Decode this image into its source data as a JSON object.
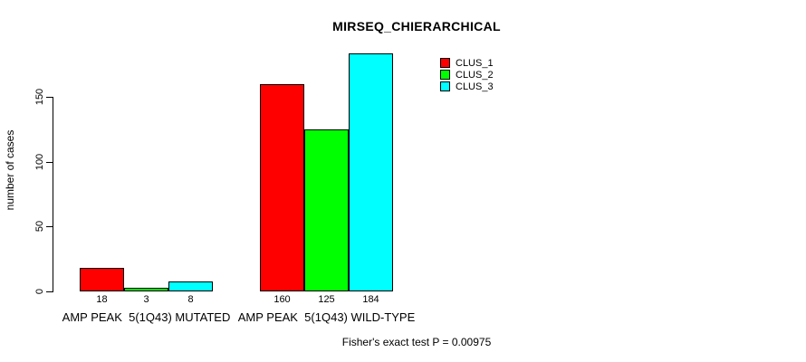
{
  "chart_data": {
    "type": "bar",
    "title": "MIRSEQ_CHIERARCHICAL",
    "ylabel": "number of cases",
    "xlabel": "",
    "categories": [
      "AMP PEAK  5(1Q43) MUTATED",
      "AMP PEAK  5(1Q43) WILD-TYPE"
    ],
    "series": [
      {
        "name": "CLUS_1",
        "color": "#FF0000",
        "values": [
          18,
          160
        ]
      },
      {
        "name": "CLUS_2",
        "color": "#00FF00",
        "values": [
          3,
          125
        ]
      },
      {
        "name": "CLUS_3",
        "color": "#00FFFF",
        "values": [
          8,
          184
        ]
      }
    ],
    "yticks": [
      0,
      50,
      100,
      150
    ],
    "ylim": [
      0,
      184
    ],
    "show_bar_value_labels": true,
    "annotation": "Fisher's exact test P = 0.00975",
    "legend_position": "top-right",
    "grid": false,
    "bar_border_color": "#000000",
    "axis_color": "#000000",
    "background_color": "#FFFFFF"
  }
}
